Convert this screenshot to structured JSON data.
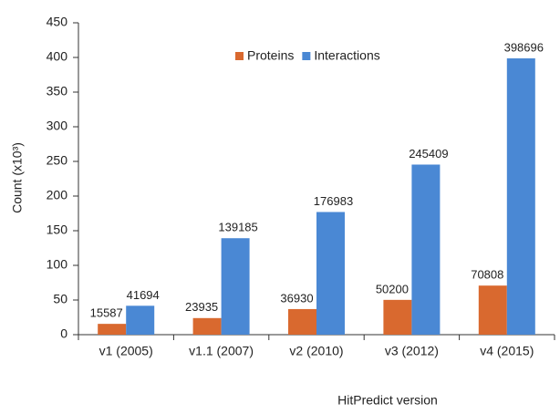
{
  "chart_data": {
    "type": "bar",
    "x_label": "HitPredict version",
    "y_label": "Count (x10³)",
    "categories": [
      "v1 (2005)",
      "v1.1 (2007)",
      "v2 (2010)",
      "v3 (2012)",
      "v4 (2015)"
    ],
    "series": [
      {
        "name": "Proteins",
        "color": "#d9692f",
        "values": [
          15.587,
          23.935,
          36.93,
          50.2,
          70.808
        ],
        "value_labels": [
          "15587",
          "23935",
          "36930",
          "50200",
          "70808"
        ]
      },
      {
        "name": "Interactions",
        "color": "#4a88d4",
        "values": [
          41.694,
          139.185,
          176.983,
          245.409,
          398.696
        ],
        "value_labels": [
          "41694",
          "139185",
          "176983",
          "245409",
          "398696"
        ]
      }
    ],
    "ylim": [
      0,
      450
    ],
    "yticks": [
      0,
      50,
      100,
      150,
      200,
      250,
      300,
      350,
      400,
      450
    ],
    "grid": false,
    "legend": "top"
  }
}
